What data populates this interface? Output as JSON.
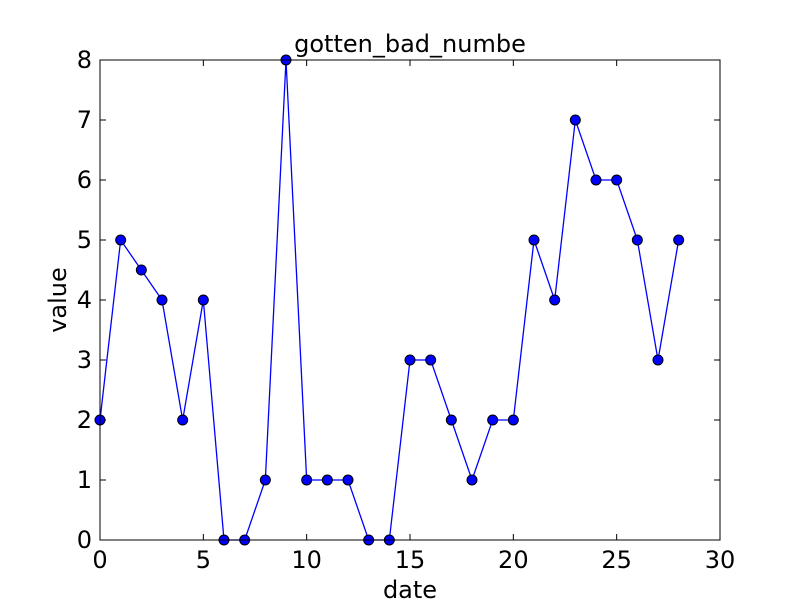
{
  "chart_data": {
    "type": "line",
    "title": "gotten_bad_numbe",
    "xlabel": "date",
    "ylabel": "value",
    "xlim": [
      0,
      30
    ],
    "ylim": [
      0,
      8
    ],
    "xticks": [
      0,
      5,
      10,
      15,
      20,
      25,
      30
    ],
    "yticks": [
      0,
      1,
      2,
      3,
      4,
      5,
      6,
      7,
      8
    ],
    "grid": false,
    "legend": "none",
    "series": [
      {
        "color": "#0000ff",
        "marker": "circle",
        "x": [
          0,
          1,
          2,
          3,
          4,
          5,
          6,
          7,
          8,
          9,
          10,
          11,
          12,
          13,
          14,
          15,
          16,
          17,
          18,
          19,
          20,
          21,
          22,
          23,
          24,
          25,
          26,
          27,
          28
        ],
        "y": [
          2,
          5,
          4.5,
          4,
          2,
          4,
          0,
          0,
          1,
          8,
          1,
          1,
          1,
          0,
          0,
          3,
          3,
          2,
          1,
          2,
          2,
          5,
          4,
          7,
          6,
          6,
          5,
          3,
          5
        ]
      }
    ]
  }
}
